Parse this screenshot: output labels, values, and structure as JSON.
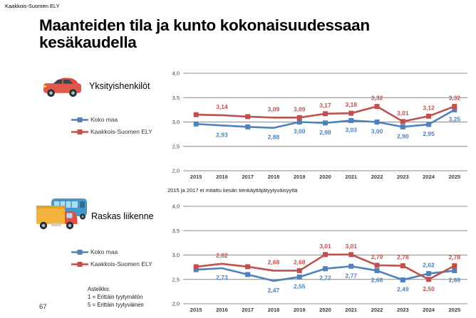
{
  "header": {
    "label": "Kaakkois-Suomen ELY"
  },
  "title": "Maanteiden tila ja kunto kokonaisuudessaan kesäkaudella",
  "page_number": "67",
  "footnote": "2015 ja 2017 ei mitattu kesän tienkäyttäjätyytyväisyyttä",
  "scale_note": {
    "line1": "Asteikko:",
    "line2": "1 = Erittäin tyytymätön",
    "line3": "5 = Erittäin tyytyväinen"
  },
  "sections": [
    {
      "label": "Yksityishenkilöt",
      "icon": "car-icon"
    },
    {
      "label": "Raskas liikenne",
      "icon": "truck-bus-icon"
    }
  ],
  "legend": [
    {
      "label": "Koko maa",
      "color": "#4F81BD"
    },
    {
      "label": "Kaakkois-Suomen ELY",
      "color": "#C0504D"
    }
  ],
  "colors": {
    "series_blue": "#4F81BD",
    "series_red": "#C0504D",
    "gridline": "#8c8c8c",
    "axis_text": "#3f3f3f"
  },
  "chart_data": [
    {
      "type": "line",
      "name": "Yksityishenkilöt",
      "x": [
        "2015",
        "2016",
        "2017",
        "2018",
        "2019",
        "2020",
        "2021",
        "2022",
        "2023",
        "2024",
        "2025"
      ],
      "ylim": [
        2.0,
        4.0
      ],
      "ytick_step": 0.5,
      "ytick_labels": [
        "2,0",
        "2,5",
        "3,0",
        "3,5",
        "4,0"
      ],
      "grid": true,
      "legend_position": "left",
      "series": [
        {
          "name": "Koko maa",
          "color": "#4F81BD",
          "values": [
            2.96,
            2.93,
            2.9,
            2.88,
            3.0,
            2.98,
            3.03,
            3.0,
            2.9,
            2.95,
            3.25
          ],
          "labels": [
            "",
            "2,93",
            "",
            "2,88",
            "3,00",
            "2,98",
            "3,03",
            "3,00",
            "2,90",
            "2,95",
            "3,25"
          ],
          "markers": [
            true,
            false,
            true,
            false,
            true,
            true,
            true,
            true,
            true,
            true,
            true
          ],
          "label_side": [
            "below",
            "below",
            "below",
            "below",
            "below",
            "below",
            "below",
            "below",
            "below",
            "below",
            "below"
          ]
        },
        {
          "name": "Kaakkois-Suomen ELY",
          "color": "#C0504D",
          "values": [
            3.15,
            3.14,
            3.11,
            3.09,
            3.09,
            3.17,
            3.18,
            3.32,
            3.01,
            3.12,
            3.32
          ],
          "labels": [
            "",
            "3,14",
            "",
            "3,09",
            "3,09",
            "3,17",
            "3,18",
            "3,32",
            "3,01",
            "3,12",
            "3,32"
          ],
          "markers": [
            true,
            false,
            true,
            false,
            true,
            true,
            true,
            true,
            true,
            true,
            true
          ],
          "label_side": [
            "above",
            "above",
            "above",
            "above",
            "above",
            "above",
            "above",
            "above",
            "above",
            "above",
            "above"
          ]
        }
      ]
    },
    {
      "type": "line",
      "name": "Raskas liikenne",
      "x": [
        "2015",
        "2016",
        "2017",
        "2018",
        "2019",
        "2020",
        "2021",
        "2022",
        "2023",
        "2024",
        "2025"
      ],
      "ylim": [
        2.0,
        4.0
      ],
      "ytick_step": 0.5,
      "ytick_labels": [
        "2,0",
        "2,5",
        "3,0",
        "3,5",
        "4,0"
      ],
      "grid": true,
      "legend_position": "left",
      "series": [
        {
          "name": "Koko maa",
          "color": "#4F81BD",
          "values": [
            2.7,
            2.73,
            2.6,
            2.47,
            2.55,
            2.72,
            2.77,
            2.68,
            2.49,
            2.62,
            2.68
          ],
          "labels": [
            "",
            "2,73",
            "",
            "2,47",
            "2,55",
            "2,72",
            "2,77",
            "2,68",
            "2,49",
            "2,62",
            "2,68"
          ],
          "markers": [
            true,
            false,
            true,
            false,
            true,
            true,
            true,
            true,
            true,
            true,
            true
          ],
          "label_side": [
            "below",
            "below",
            "below",
            "below",
            "below",
            "below",
            "below",
            "below",
            "below",
            "above",
            "below"
          ]
        },
        {
          "name": "Kaakkois-Suomen ELY",
          "color": "#C0504D",
          "values": [
            2.76,
            2.82,
            2.76,
            2.68,
            2.68,
            3.01,
            3.01,
            2.79,
            2.78,
            2.5,
            2.78
          ],
          "labels": [
            "",
            "2,82",
            "",
            "2,68",
            "2,68",
            "3,01",
            "3,01",
            "2,79",
            "2,78",
            "2,50",
            "2,78"
          ],
          "markers": [
            true,
            false,
            true,
            false,
            true,
            true,
            true,
            true,
            true,
            true,
            true
          ],
          "label_side": [
            "above",
            "above",
            "above",
            "above",
            "above",
            "above",
            "above",
            "above",
            "above",
            "below",
            "above"
          ]
        }
      ]
    }
  ]
}
